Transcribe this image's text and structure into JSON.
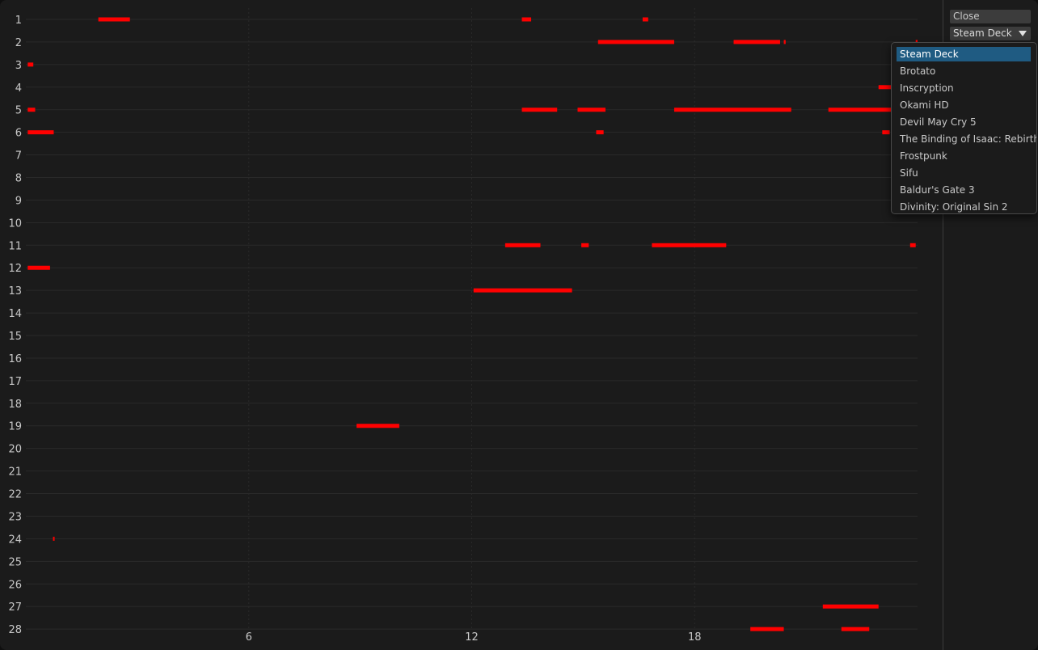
{
  "controls": {
    "close_label": "Close",
    "selected_game": "Steam Deck"
  },
  "dropdown": {
    "options": [
      "Steam Deck",
      "Brotato",
      "Inscryption",
      "Okami HD",
      "Devil May Cry 5",
      "The Binding of Isaac: Rebirth",
      "Frostpunk",
      "Sifu",
      "Baldur's Gate 3",
      "Divinity: Original Sin 2"
    ]
  },
  "colors": {
    "background": "#1b1b1b",
    "bar": "#ff0000",
    "grid": "#2a2a2a",
    "selection": "#1f5b82"
  },
  "chart_data": {
    "type": "timeline",
    "y_categories": [
      "1",
      "2",
      "3",
      "4",
      "5",
      "6",
      "7",
      "8",
      "9",
      "10",
      "11",
      "12",
      "13",
      "14",
      "15",
      "16",
      "17",
      "18",
      "19",
      "20",
      "21",
      "22",
      "23",
      "24",
      "25",
      "26",
      "27",
      "28"
    ],
    "x_ticks": [
      6,
      12,
      18
    ],
    "xlim": [
      0,
      24
    ],
    "grid": true,
    "sessions": [
      {
        "day": 1,
        "start": 1.95,
        "end": 2.8
      },
      {
        "day": 1,
        "start": 13.35,
        "end": 13.6
      },
      {
        "day": 1,
        "start": 16.6,
        "end": 16.75
      },
      {
        "day": 2,
        "start": 15.4,
        "end": 17.45
      },
      {
        "day": 2,
        "start": 19.05,
        "end": 20.3
      },
      {
        "day": 2,
        "start": 20.4,
        "end": 20.45
      },
      {
        "day": 2,
        "start": 23.95,
        "end": 24.0
      },
      {
        "day": 3,
        "start": 0.05,
        "end": 0.2
      },
      {
        "day": 4,
        "start": 22.95,
        "end": 23.5
      },
      {
        "day": 5,
        "start": 0.05,
        "end": 0.25
      },
      {
        "day": 5,
        "start": 13.35,
        "end": 14.3
      },
      {
        "day": 5,
        "start": 14.85,
        "end": 15.6
      },
      {
        "day": 5,
        "start": 17.45,
        "end": 20.6
      },
      {
        "day": 5,
        "start": 21.6,
        "end": 23.5
      },
      {
        "day": 6,
        "start": 0.05,
        "end": 0.75
      },
      {
        "day": 6,
        "start": 15.35,
        "end": 15.55
      },
      {
        "day": 6,
        "start": 23.05,
        "end": 23.25
      },
      {
        "day": 11,
        "start": 12.9,
        "end": 13.85
      },
      {
        "day": 11,
        "start": 14.95,
        "end": 15.15
      },
      {
        "day": 11,
        "start": 16.85,
        "end": 18.85
      },
      {
        "day": 11,
        "start": 23.8,
        "end": 23.95
      },
      {
        "day": 12,
        "start": 0.05,
        "end": 0.65
      },
      {
        "day": 13,
        "start": 12.05,
        "end": 14.7
      },
      {
        "day": 19,
        "start": 8.9,
        "end": 10.05
      },
      {
        "day": 24,
        "start": 0.73,
        "end": 0.77
      },
      {
        "day": 27,
        "start": 21.45,
        "end": 22.95
      },
      {
        "day": 28,
        "start": 19.5,
        "end": 20.4
      },
      {
        "day": 28,
        "start": 21.95,
        "end": 22.7
      }
    ]
  }
}
